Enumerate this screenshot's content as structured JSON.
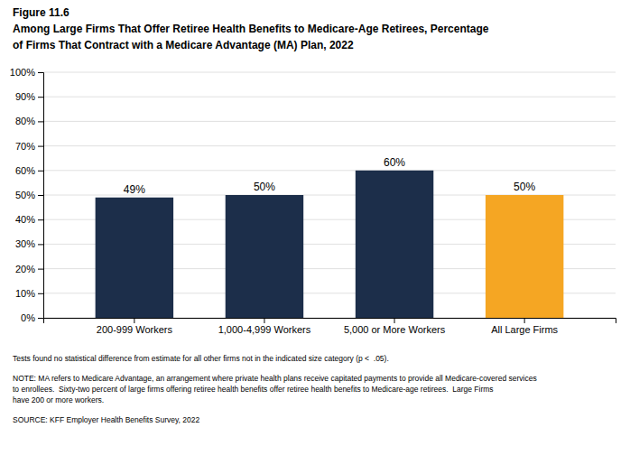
{
  "chart_data": {
    "type": "bar",
    "title": [
      "Figure 11.6",
      "Among Large Firms That Offer Retiree Health Benefits to Medicare-Age Retirees, Percentage",
      "of Firms That Contract with a Medicare Advantage (MA) Plan, 2022"
    ],
    "categories": [
      "200-999 Workers",
      "1,000-4,999 Workers",
      "5,000 or More Workers",
      "All Large Firms"
    ],
    "values": [
      49,
      50,
      60,
      50
    ],
    "value_labels": [
      "49%",
      "50%",
      "60%",
      "50%"
    ],
    "data_labels": true,
    "colors": [
      "#1c2e4a",
      "#1c2e4a",
      "#1c2e4a",
      "#f5a623"
    ],
    "ylim": [
      0,
      100
    ],
    "yticks": [
      {
        "value": 0,
        "label": "0%"
      },
      {
        "value": 10,
        "label": "10%"
      },
      {
        "value": 20,
        "label": "20%"
      },
      {
        "value": 30,
        "label": "30%"
      },
      {
        "value": 40,
        "label": "40%"
      },
      {
        "value": 50,
        "label": "50%"
      },
      {
        "value": 60,
        "label": "60%"
      },
      {
        "value": 70,
        "label": "70%"
      },
      {
        "value": 80,
        "label": "80%"
      },
      {
        "value": 90,
        "label": "90%"
      },
      {
        "value": 100,
        "label": "100%"
      }
    ],
    "grid": true,
    "annotations": [
      "Tests found no statistical difference from estimate for all other firms not in the indicated size category (p <  .05).",
      "NOTE: MA refers to Medicare Advantage, an arrangement where private health plans receive capitated payments to provide all Medicare-covered services\nto enrollees.  Sixty-two percent of large firms offering retiree health benefits offer retiree health benefits to Medicare-age retirees.  Large Firms\nhave 200 or more workers.",
      "SOURCE: KFF Employer Health Benefits Survey, 2022"
    ]
  }
}
